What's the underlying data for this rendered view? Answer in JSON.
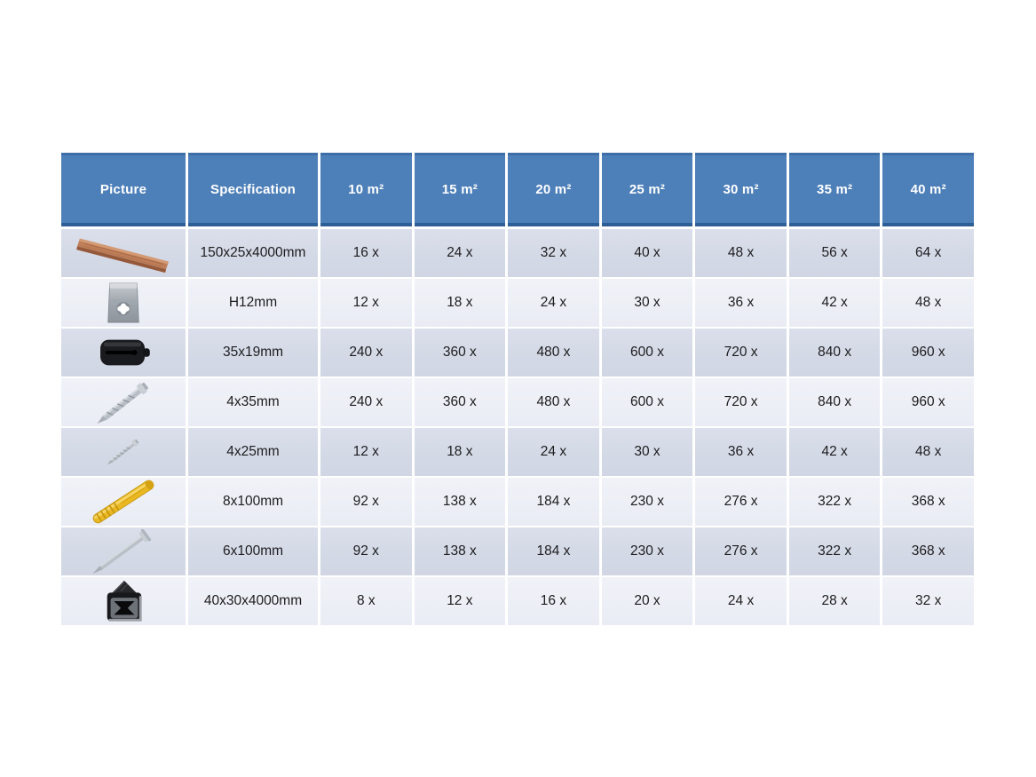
{
  "table": {
    "headers": [
      "Picture",
      "Specification",
      "10 m²",
      "15 m²",
      "20 m²",
      "25 m²",
      "30 m²",
      "35 m²",
      "40 m²"
    ],
    "rows": [
      {
        "icon": "decking-board",
        "spec": "150x25x4000mm",
        "values": [
          "16 x",
          "24 x",
          "32 x",
          "40 x",
          "48 x",
          "56 x",
          "64 x"
        ]
      },
      {
        "icon": "metal-clip",
        "spec": "H12mm",
        "values": [
          "12 x",
          "18 x",
          "24 x",
          "30 x",
          "36 x",
          "42 x",
          "48 x"
        ]
      },
      {
        "icon": "plastic-clip",
        "spec": "35x19mm",
        "values": [
          "240 x",
          "360 x",
          "480 x",
          "600 x",
          "720 x",
          "840 x",
          "960 x"
        ]
      },
      {
        "icon": "screw-large",
        "spec": "4x35mm",
        "values": [
          "240 x",
          "360 x",
          "480 x",
          "600 x",
          "720 x",
          "840 x",
          "960 x"
        ]
      },
      {
        "icon": "screw-small",
        "spec": "4x25mm",
        "values": [
          "12 x",
          "18 x",
          "24 x",
          "30 x",
          "36 x",
          "42 x",
          "48 x"
        ]
      },
      {
        "icon": "wall-plug",
        "spec": "8x100mm",
        "values": [
          "92 x",
          "138 x",
          "184 x",
          "230 x",
          "276 x",
          "322 x",
          "368 x"
        ]
      },
      {
        "icon": "nail",
        "spec": "6x100mm",
        "values": [
          "92 x",
          "138 x",
          "184 x",
          "230 x",
          "276 x",
          "322 x",
          "368 x"
        ]
      },
      {
        "icon": "joist-profile",
        "spec": "40x30x4000mm",
        "values": [
          "8 x",
          "12 x",
          "16 x",
          "20 x",
          "24 x",
          "28 x",
          "32 x"
        ]
      }
    ]
  },
  "colors": {
    "page_bg": "#ffffff",
    "header_bg": "#4d7fb9",
    "header_border_top": "#3e6ea7",
    "header_border_bottom": "#2d5e95",
    "header_text": "#ffffff",
    "row_dark": "#d4d9e6",
    "row_light": "#edeff6",
    "cell_text": "#1d1d1f"
  }
}
